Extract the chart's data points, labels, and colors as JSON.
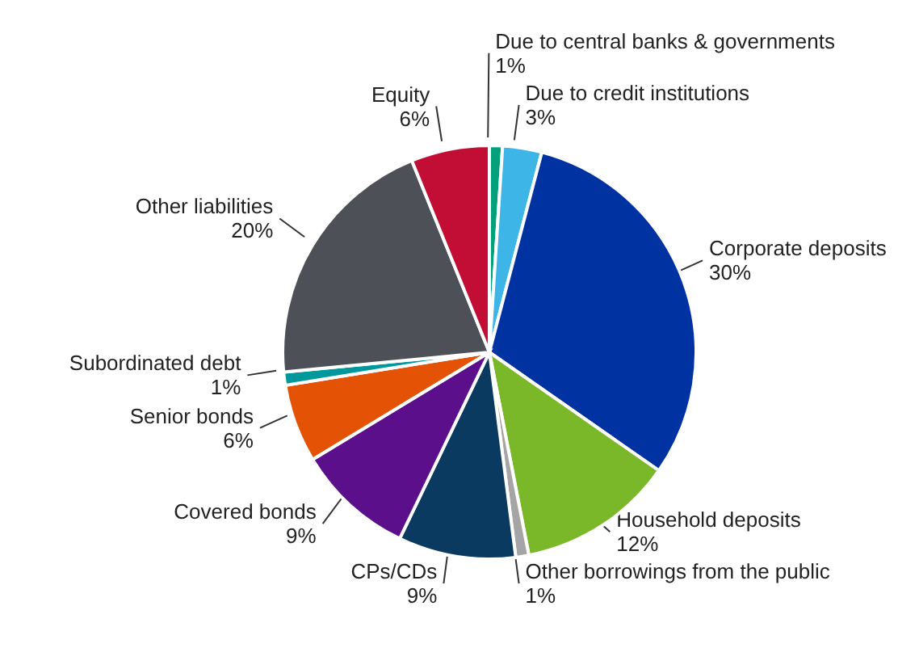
{
  "chart_data": {
    "type": "pie",
    "categories": [
      "Due to central banks & governments",
      "Due to credit institutions",
      "Corporate deposits",
      "Household deposits",
      "Other borrowings from the public",
      "CPs/CDs",
      "Covered bonds",
      "Senior bonds",
      "Subordinated debt",
      "Other liabilities",
      "Equity"
    ],
    "values": [
      1,
      3,
      30,
      12,
      1,
      9,
      9,
      6,
      1,
      20,
      6
    ],
    "value_labels": [
      "1%",
      "3%",
      "30%",
      "12%",
      "1%",
      "9%",
      "9%",
      "6%",
      "1%",
      "20%",
      "6%"
    ],
    "colors": [
      "#00a07a",
      "#3db5e6",
      "#0033a1",
      "#7ab829",
      "#a5a5a5",
      "#0a3a5f",
      "#5c0f8b",
      "#e35205",
      "#00979d",
      "#4d5157",
      "#c20e35"
    ]
  }
}
